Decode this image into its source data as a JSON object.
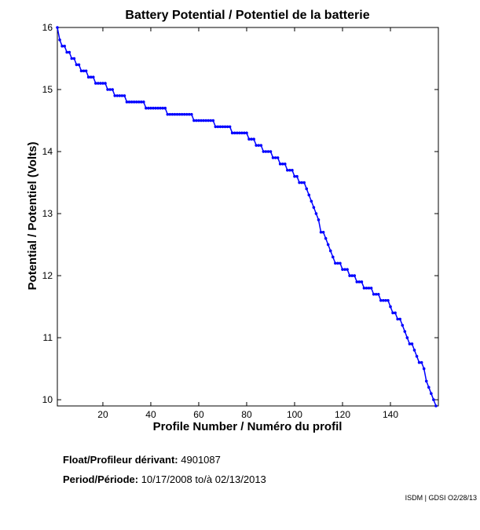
{
  "chart_data": {
    "type": "line",
    "title": "Battery Potential / Potentiel de la batterie",
    "xlabel": "Profile Number / Numéro du profil",
    "ylabel": "Potential / Potentiel (Volts)",
    "xlim": [
      1,
      160
    ],
    "ylim": [
      9.9,
      16
    ],
    "xticks": [
      20,
      40,
      60,
      80,
      100,
      120,
      140
    ],
    "yticks": [
      10,
      11,
      12,
      13,
      14,
      15,
      16
    ],
    "grid": false,
    "color": "#0000ff",
    "series": [
      {
        "values": [
          16.0,
          15.8,
          15.7,
          15.7,
          15.6,
          15.6,
          15.5,
          15.5,
          15.4,
          15.4,
          15.3,
          15.3,
          15.3,
          15.2,
          15.2,
          15.2,
          15.1,
          15.1,
          15.1,
          15.1,
          15.1,
          15.0,
          15.0,
          15.0,
          14.9,
          14.9,
          14.9,
          14.9,
          14.9,
          14.8,
          14.8,
          14.8,
          14.8,
          14.8,
          14.8,
          14.8,
          14.8,
          14.7,
          14.7,
          14.7,
          14.7,
          14.7,
          14.7,
          14.7,
          14.7,
          14.7,
          14.6,
          14.6,
          14.6,
          14.6,
          14.6,
          14.6,
          14.6,
          14.6,
          14.6,
          14.6,
          14.6,
          14.5,
          14.5,
          14.5,
          14.5,
          14.5,
          14.5,
          14.5,
          14.5,
          14.5,
          14.4,
          14.4,
          14.4,
          14.4,
          14.4,
          14.4,
          14.4,
          14.3,
          14.3,
          14.3,
          14.3,
          14.3,
          14.3,
          14.3,
          14.2,
          14.2,
          14.2,
          14.1,
          14.1,
          14.1,
          14.0,
          14.0,
          14.0,
          14.0,
          13.9,
          13.9,
          13.9,
          13.8,
          13.8,
          13.8,
          13.7,
          13.7,
          13.7,
          13.6,
          13.6,
          13.5,
          13.5,
          13.5,
          13.4,
          13.3,
          13.2,
          13.1,
          13.0,
          12.9,
          12.7,
          12.7,
          12.6,
          12.5,
          12.4,
          12.3,
          12.2,
          12.2,
          12.2,
          12.1,
          12.1,
          12.1,
          12.0,
          12.0,
          12.0,
          11.9,
          11.9,
          11.9,
          11.8,
          11.8,
          11.8,
          11.8,
          11.7,
          11.7,
          11.7,
          11.6,
          11.6,
          11.6,
          11.6,
          11.5,
          11.4,
          11.4,
          11.3,
          11.3,
          11.2,
          11.1,
          11.0,
          10.9,
          10.9,
          10.8,
          10.7,
          10.6,
          10.6,
          10.5,
          10.3,
          10.2,
          10.1,
          10.0,
          9.9
        ]
      }
    ]
  },
  "info": {
    "float_label": "Float/Profileur dérivant:",
    "float_value": "4901087",
    "period_label": "Period/Période:",
    "period_start": "10/17/2008",
    "period_sep": "to/à",
    "period_end": "02/13/2013"
  },
  "footer": "ISDM | GDSI O2/28/13"
}
